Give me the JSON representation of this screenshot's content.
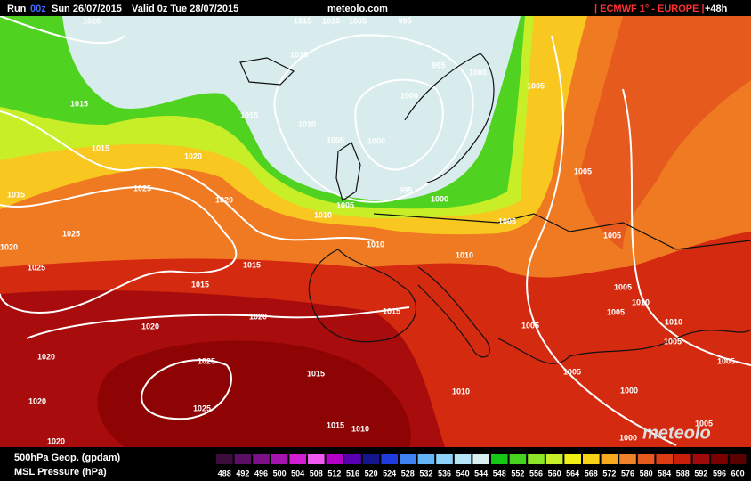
{
  "header": {
    "run": "Run",
    "run_hour": "00z",
    "run_date": "Sun 26/07/2015",
    "valid": "Valid 0z Tue 28/07/2015",
    "site": "meteolo.com",
    "model": "| ECMWF 1° - EUROPE |",
    "lead": "+48h"
  },
  "isobar_labels": [
    "1020",
    "1015",
    "1010",
    "1005",
    "995",
    "1015",
    "995",
    "1000",
    "1015",
    "1000",
    "1010",
    "1015",
    "1005",
    "1000",
    "1005",
    "1015",
    "1020",
    "995",
    "1000",
    "1005",
    "1010",
    "1025",
    "1020",
    "1015",
    "1005",
    "1005",
    "1025",
    "1005",
    "1020",
    "1010",
    "1010",
    "1025",
    "1015",
    "1015",
    "1005",
    "1010",
    "1005",
    "1020",
    "1015",
    "1010",
    "1005",
    "1020",
    "1005",
    "1020",
    "1025",
    "1015",
    "1005",
    "1005",
    "1010",
    "1000",
    "1020",
    "1025",
    "1015",
    "1010",
    "1005",
    "1020",
    "1000"
  ],
  "logo": "meteolo",
  "footer": {
    "geop": "500hPa Geop. (gpdam)",
    "mslp": "MSL Pressure (hPa)",
    "scale": [
      {
        "value": 488,
        "color": "#3c0c3c"
      },
      {
        "value": 492,
        "color": "#5a0e64"
      },
      {
        "value": 496,
        "color": "#7c1088"
      },
      {
        "value": 500,
        "color": "#a414ac"
      },
      {
        "value": 504,
        "color": "#d21ed2"
      },
      {
        "value": 508,
        "color": "#f05af0"
      },
      {
        "value": 512,
        "color": "#b400c8"
      },
      {
        "value": 516,
        "color": "#5a00b4"
      },
      {
        "value": 520,
        "color": "#14148c"
      },
      {
        "value": 524,
        "color": "#1e3cdc"
      },
      {
        "value": 528,
        "color": "#3c82f0"
      },
      {
        "value": 532,
        "color": "#64b4f8"
      },
      {
        "value": 536,
        "color": "#8cd2fa"
      },
      {
        "value": 540,
        "color": "#b4e6f8"
      },
      {
        "value": 544,
        "color": "#d8f0f0"
      },
      {
        "value": 548,
        "color": "#14c814"
      },
      {
        "value": 552,
        "color": "#46d21e"
      },
      {
        "value": 556,
        "color": "#8ce628"
      },
      {
        "value": 560,
        "color": "#c8f028"
      },
      {
        "value": 564,
        "color": "#f0f014"
      },
      {
        "value": 568,
        "color": "#f8d214"
      },
      {
        "value": 572,
        "color": "#f8aa1e"
      },
      {
        "value": 576,
        "color": "#f08228"
      },
      {
        "value": 580,
        "color": "#e65a1e"
      },
      {
        "value": 584,
        "color": "#dc3c14"
      },
      {
        "value": 588,
        "color": "#c81e0a"
      },
      {
        "value": 592,
        "color": "#a00a0a"
      },
      {
        "value": 596,
        "color": "#7c0000"
      },
      {
        "value": 600,
        "color": "#5a0000"
      }
    ]
  }
}
